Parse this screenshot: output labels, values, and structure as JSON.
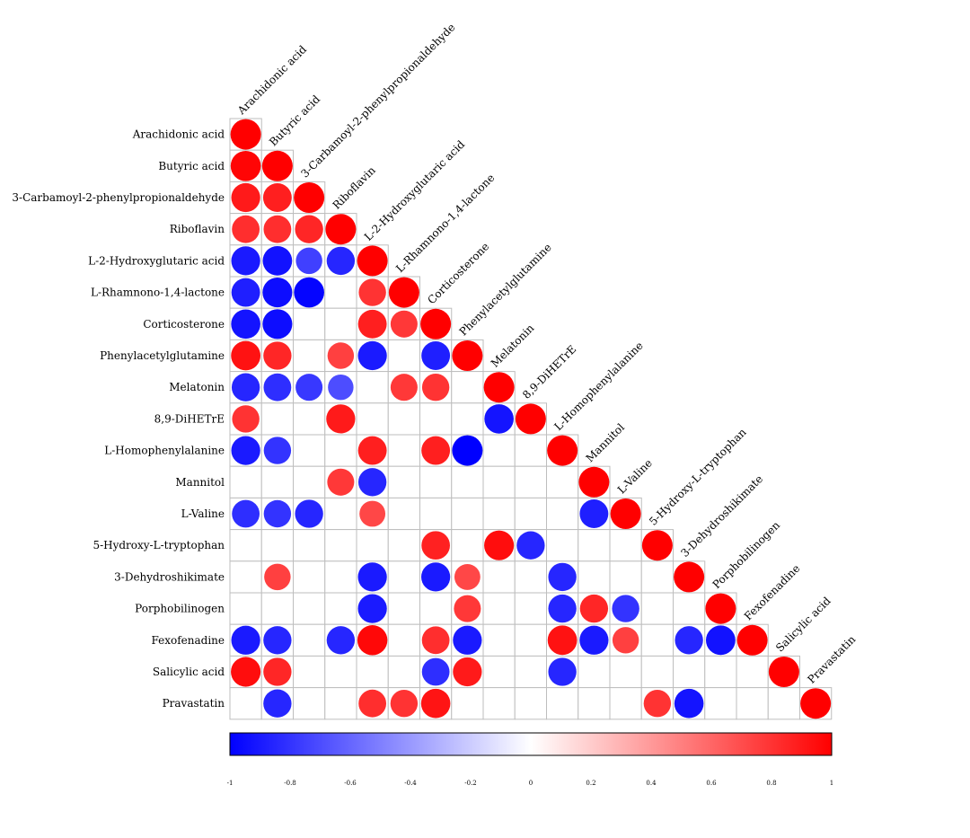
{
  "chart_data": {
    "type": "heatmap",
    "variables": [
      "Arachidonic acid",
      "Butyric acid",
      "3-Carbamoyl-2-phenylpropionaldehyde",
      "Riboflavin",
      "L-2-Hydroxyglutaric acid",
      "L-Rhamnono-1,4-lactone",
      "Corticosterone",
      "Phenylacetylglutamine",
      "Melatonin",
      "8,9-DiHETrE",
      "L-Homophenylalanine",
      "Mannitol",
      "L-Valine",
      "5-Hydroxy-L-tryptophan",
      "3-Dehydroshikimate",
      "Porphobilinogen",
      "Fexofenadine",
      "Salicylic acid",
      "Pravastatin"
    ],
    "correlations": [
      [
        1
      ],
      [
        0.98,
        1
      ],
      [
        0.9,
        0.88,
        1
      ],
      [
        0.82,
        0.82,
        0.85,
        1
      ],
      [
        -0.9,
        -0.93,
        -0.75,
        -0.85,
        1
      ],
      [
        -0.88,
        -0.95,
        -0.98,
        null,
        0.8,
        1
      ],
      [
        -0.92,
        -0.95,
        null,
        null,
        0.88,
        0.78,
        1
      ],
      [
        0.93,
        0.85,
        null,
        0.75,
        -0.9,
        null,
        -0.88,
        1
      ],
      [
        -0.85,
        -0.82,
        -0.78,
        -0.7,
        null,
        0.78,
        0.8,
        null,
        1
      ],
      [
        0.8,
        null,
        null,
        0.9,
        null,
        null,
        null,
        null,
        -0.92,
        1
      ],
      [
        -0.9,
        -0.8,
        null,
        null,
        0.88,
        null,
        0.88,
        -1,
        null,
        null,
        1
      ],
      [
        null,
        null,
        null,
        0.78,
        -0.85,
        null,
        null,
        null,
        null,
        null,
        null,
        1
      ],
      [
        -0.82,
        -0.8,
        -0.85,
        null,
        0.72,
        null,
        null,
        null,
        null,
        null,
        null,
        -0.88,
        1
      ],
      [
        null,
        null,
        null,
        null,
        null,
        null,
        0.87,
        null,
        0.95,
        -0.85,
        null,
        null,
        null,
        1
      ],
      [
        null,
        0.75,
        null,
        null,
        -0.9,
        null,
        -0.9,
        0.72,
        null,
        null,
        -0.85,
        null,
        null,
        null,
        1
      ],
      [
        null,
        null,
        null,
        null,
        -0.9,
        null,
        null,
        0.78,
        null,
        null,
        -0.85,
        0.85,
        -0.8,
        null,
        null,
        1
      ],
      [
        -0.9,
        -0.85,
        null,
        -0.85,
        0.97,
        null,
        0.82,
        -0.9,
        null,
        null,
        0.93,
        -0.9,
        0.75,
        null,
        -0.85,
        -0.93,
        1
      ],
      [
        0.95,
        0.85,
        null,
        null,
        null,
        null,
        -0.82,
        0.9,
        null,
        null,
        -0.85,
        null,
        null,
        null,
        null,
        null,
        null,
        1
      ],
      [
        null,
        -0.85,
        null,
        null,
        0.82,
        0.8,
        0.92,
        null,
        null,
        null,
        null,
        null,
        null,
        0.8,
        -0.92,
        null,
        null,
        null,
        1
      ]
    ],
    "color_scale": {
      "min": -1,
      "max": 1,
      "ticks": [
        "-1",
        "-0.8",
        "-0.6",
        "-0.4",
        "-0.2",
        "0",
        "0.2",
        "0.4",
        "0.6",
        "0.8",
        "1"
      ],
      "low_color": "#0000FF",
      "mid_color": "#FFFFFF",
      "high_color": "#FF0000"
    },
    "grid_color": "#BEBEBE"
  }
}
